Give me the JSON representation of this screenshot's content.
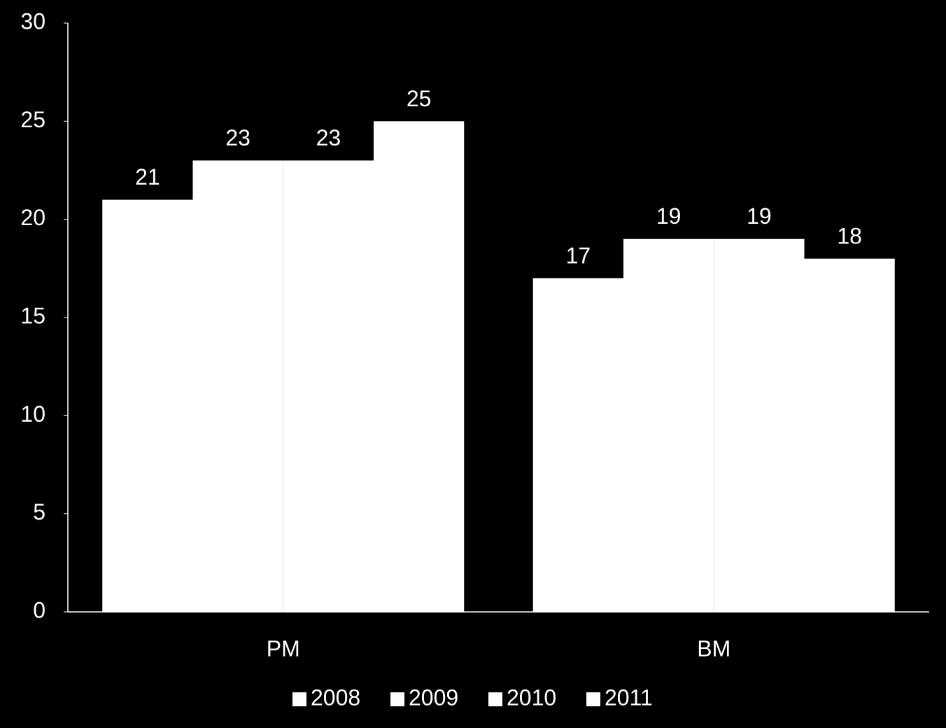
{
  "chart_data": {
    "type": "bar",
    "categories": [
      "PM",
      "BM"
    ],
    "series": [
      {
        "name": "2008",
        "color": "#ffffff",
        "values": [
          21,
          17
        ]
      },
      {
        "name": "2009",
        "color": "#ffffff",
        "values": [
          23,
          19
        ]
      },
      {
        "name": "2010",
        "color": "#ffffff",
        "values": [
          23,
          19
        ]
      },
      {
        "name": "2011",
        "color": "#ffffff",
        "values": [
          25,
          18
        ]
      }
    ],
    "ylim": [
      0,
      30
    ],
    "yticks": [
      0,
      5,
      10,
      15,
      20,
      25,
      30
    ],
    "grid": false,
    "legend": "bottom"
  }
}
